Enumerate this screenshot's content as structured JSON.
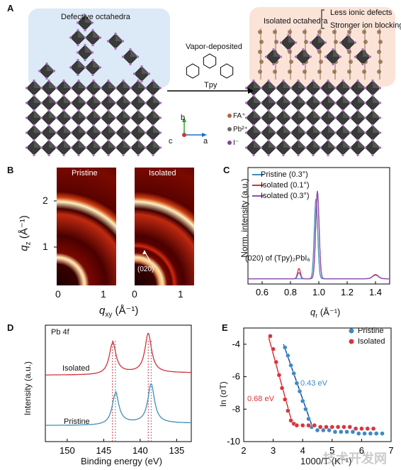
{
  "panel_labels": {
    "a": "A",
    "b": "B",
    "c": "C",
    "d": "D",
    "e": "E"
  },
  "panel_a": {
    "left_label": "Defective octahedra",
    "right_label": "Isolated octahedra",
    "bracket_notes": [
      "Less ionic defects",
      "Stronger ion blocking"
    ],
    "arrow_label": "Vapor-deposited",
    "molecule_label": "Tpy",
    "legend": [
      {
        "label": "FA⁺",
        "color": "#b0663a"
      },
      {
        "label": "Pb²⁺",
        "color": "#6c6c6c"
      },
      {
        "label": "I⁻",
        "color": "#8a3fa0"
      }
    ],
    "axes": {
      "b": "b",
      "c": "c",
      "a": "a"
    },
    "colors": {
      "left_bg": "#dce9f6",
      "right_bg": "#fbe3d8",
      "octahedron": "#3a3a3a",
      "iodide": "#b069c8"
    }
  },
  "panel_b": {
    "titles": [
      "Pristine",
      "Isolated"
    ],
    "annotation": "(020)",
    "y_label_main": "q",
    "y_label_sub": "z",
    "y_label_unit": " (Å⁻¹)",
    "x_label_main": "q",
    "x_label_sub": "xy",
    "x_label_unit": " (Å⁻¹)",
    "y_ticks": [
      "2",
      "1"
    ],
    "x_ticks_left": [
      "0",
      "1"
    ],
    "x_ticks_right": [
      "0",
      "1"
    ]
  },
  "chart_data": [
    {
      "panel": "C",
      "type": "line",
      "xlabel_main": "q",
      "xlabel_sub": "r",
      "xlabel_unit": " (Å⁻¹)",
      "ylabel": "Norm. intensity (a.u.)",
      "xlim": [
        0.5,
        1.5
      ],
      "x_ticks": [
        "0.6",
        "0.8",
        "1.0",
        "1.2",
        "1.4"
      ],
      "annotation": "(020) of (Tpy)₂PbI₆",
      "series": [
        {
          "name": "Pristine (0.3°)",
          "color": "#3f8fb6",
          "peaks": [
            {
              "x": 0.98,
              "h": 0.78,
              "w": 0.012
            },
            {
              "x": 1.4,
              "h": 0.04,
              "w": 0.02
            }
          ]
        },
        {
          "name": "Isolated (0.1°)",
          "color": "#d0323a",
          "peaks": [
            {
              "x": 0.86,
              "h": 0.1,
              "w": 0.01
            },
            {
              "x": 0.99,
              "h": 0.83,
              "w": 0.012
            },
            {
              "x": 1.4,
              "h": 0.04,
              "w": 0.02
            }
          ]
        },
        {
          "name": "Isolated (0.3°)",
          "color": "#8d4fb6",
          "peaks": [
            {
              "x": 0.86,
              "h": 0.06,
              "w": 0.01
            },
            {
              "x": 0.99,
              "h": 0.86,
              "w": 0.012
            },
            {
              "x": 1.4,
              "h": 0.035,
              "w": 0.02
            }
          ]
        }
      ]
    },
    {
      "panel": "D",
      "type": "line",
      "title": "Pb 4f",
      "xlabel": "Binding energy (eV)",
      "ylabel": "Intensity (a.u.)",
      "xlim": [
        153,
        133
      ],
      "x_ticks": [
        "150",
        "145",
        "140",
        "135"
      ],
      "series": [
        {
          "name": "Isolated",
          "color": "#d0323a",
          "peaks": [
            143.8,
            138.9
          ],
          "offset": 0.45
        },
        {
          "name": "Pristine",
          "color": "#3f8fb6",
          "peaks": [
            143.4,
            138.5
          ],
          "offset": 0.0
        }
      ]
    },
    {
      "panel": "E",
      "type": "scatter",
      "xlabel": "1000/T (K⁻¹)",
      "ylabel": "ln (σT)",
      "xlim": [
        2,
        7
      ],
      "ylim": [
        -10,
        -3
      ],
      "x_ticks": [
        "2",
        "3",
        "4",
        "5",
        "6",
        "7"
      ],
      "y_ticks": [
        "-4",
        "-6",
        "-8",
        "-10"
      ],
      "series": [
        {
          "name": "Pristine",
          "color": "#3e8ac4",
          "x": [
            3.4,
            3.5,
            3.6,
            3.7,
            3.8,
            3.9,
            4.0,
            4.1,
            4.2,
            4.3,
            4.5,
            4.7,
            4.9,
            5.1,
            5.3,
            5.5,
            5.7,
            5.9,
            6.1,
            6.3,
            6.5,
            6.7
          ],
          "y": [
            -4.2,
            -4.7,
            -5.3,
            -5.8,
            -6.4,
            -6.9,
            -7.5,
            -8.0,
            -8.6,
            -9.1,
            -9.3,
            -9.3,
            -9.3,
            -9.4,
            -9.4,
            -9.4,
            -9.4,
            -9.5,
            -9.5,
            -9.5,
            -9.5,
            -9.5
          ],
          "activation": "0.43 eV"
        },
        {
          "name": "Isolated",
          "color": "#d8353c",
          "x": [
            2.9,
            3.0,
            3.1,
            3.2,
            3.3,
            3.4,
            3.5,
            3.6,
            3.7,
            3.8,
            4.0,
            4.2,
            4.4,
            4.6,
            4.8,
            5.0,
            5.2,
            5.4,
            5.6,
            5.8,
            6.0,
            6.2,
            6.4
          ],
          "y": [
            -3.5,
            -4.3,
            -5.1,
            -5.9,
            -6.7,
            -7.4,
            -8.1,
            -8.7,
            -8.9,
            -9.0,
            -9.0,
            -9.0,
            -9.0,
            -9.1,
            -9.1,
            -9.1,
            -9.1,
            -9.1,
            -9.1,
            -9.2,
            -9.2,
            -9.2,
            -9.2
          ],
          "activation": "0.68 eV"
        }
      ]
    }
  ],
  "watermark": "技术开发网"
}
